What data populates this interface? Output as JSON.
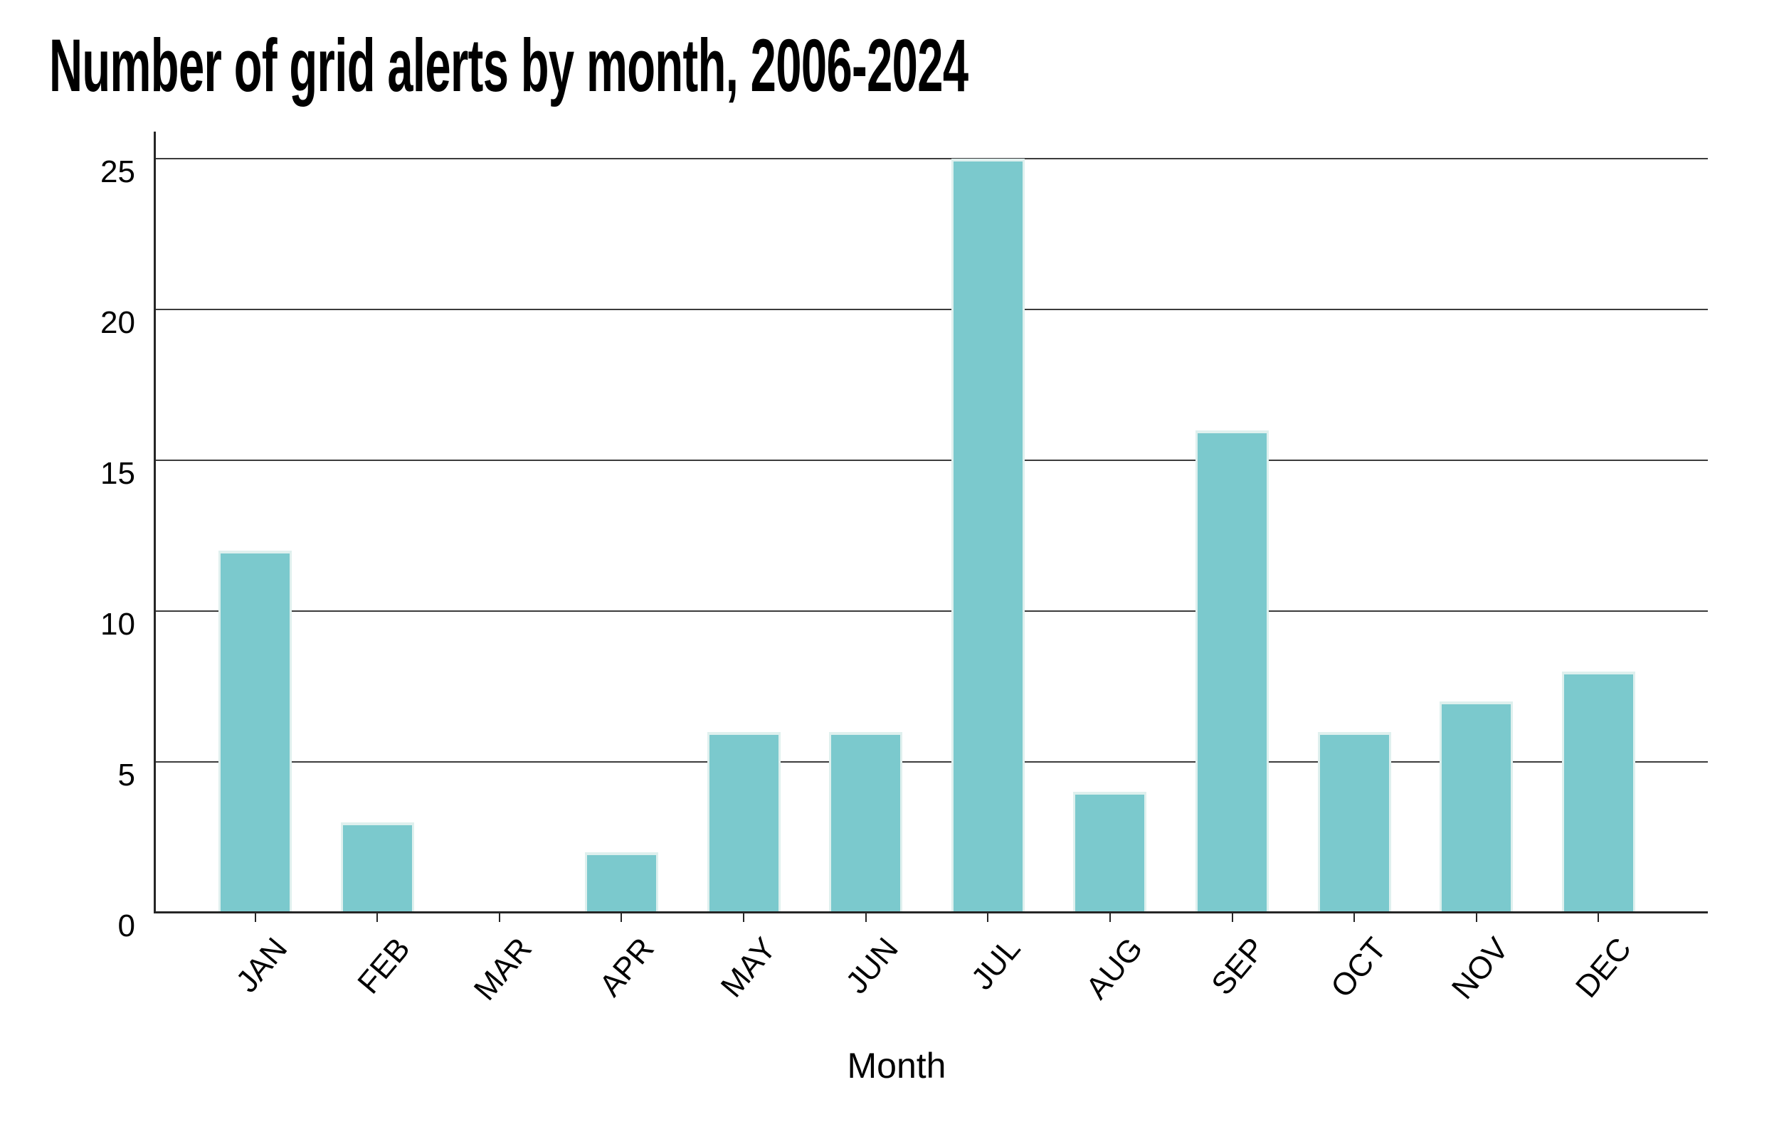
{
  "page": {
    "title": "Number of grid alerts by month, 2006-2024",
    "background": "#ffffff"
  },
  "chart_data": {
    "type": "bar",
    "title": "Number of grid alerts by month, 2006-2024",
    "categories": [
      "JAN",
      "FEB",
      "MAR",
      "APR",
      "MAY",
      "JUN",
      "JUL",
      "AUG",
      "SEP",
      "OCT",
      "NOV",
      "DEC"
    ],
    "values": [
      12,
      3,
      0,
      2,
      6,
      6,
      25,
      4,
      16,
      6,
      7,
      8
    ],
    "series_name": "Grid alerts",
    "xlabel": "Month",
    "ylabel": "",
    "yticks": [
      0,
      5,
      10,
      15,
      20,
      25
    ],
    "ylim": [
      0,
      25.9
    ],
    "grid": "horizontal-only",
    "legend": "none",
    "colors": {
      "bar_fill": "#7bc9cd",
      "bar_edge": "#dff0ee",
      "gridline": "#3c3c3c",
      "axis": "#262626",
      "text": "#000000"
    }
  }
}
